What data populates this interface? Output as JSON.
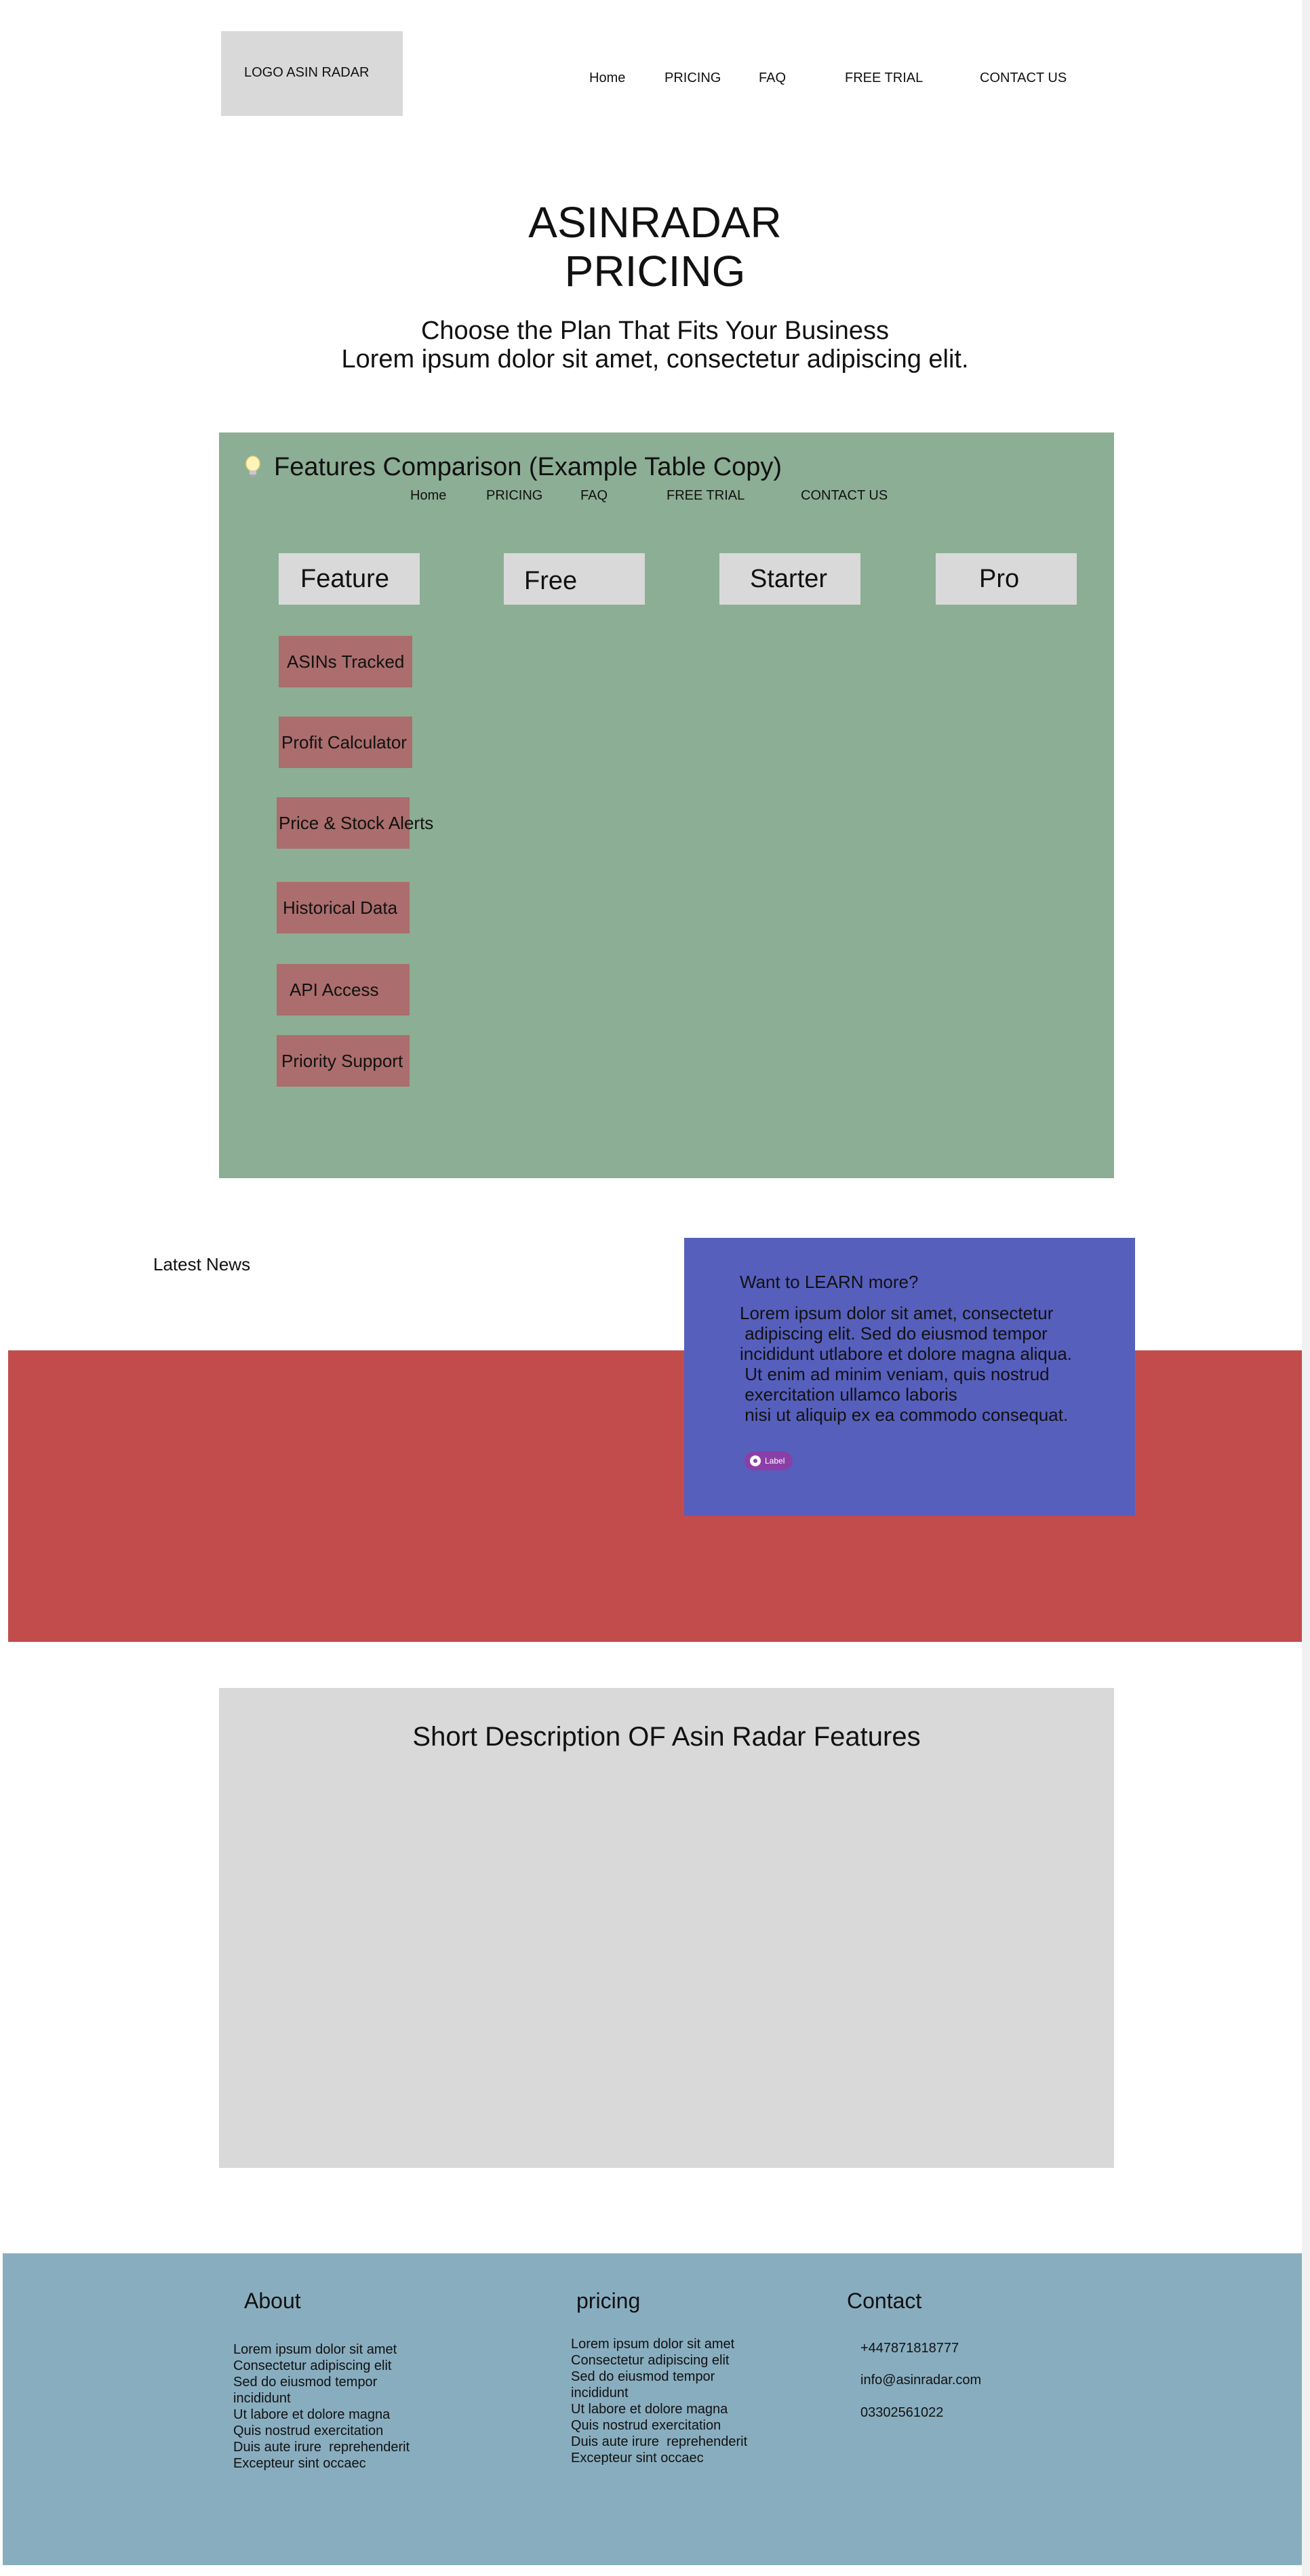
{
  "header": {
    "logo": "LOGO ASIN RADAR",
    "nav": [
      "Home",
      "PRICING",
      "FAQ",
      "FREE TRIAL",
      "CONTACT US"
    ]
  },
  "hero": {
    "title_line1": "ASINRADAR",
    "title_line2": "PRICING",
    "subtitle_line1": "Choose the Plan That Fits Your Business",
    "subtitle_line2": "Lorem ipsum dolor sit amet, consectetur adipiscing elit."
  },
  "comparison": {
    "title": "Features Comparison (Example Table Copy)",
    "nav": [
      "Home",
      "PRICING",
      "FAQ",
      "FREE TRIAL",
      "CONTACT US"
    ],
    "columns": [
      "Feature",
      "Free",
      "Starter",
      "Pro"
    ],
    "features": [
      "ASINs Tracked",
      "Profit Calculator",
      "Price & Stock Alerts",
      "Historical Data",
      "API Access",
      "Priority Support"
    ]
  },
  "news": {
    "label": "Latest News"
  },
  "learn": {
    "title": "Want to LEARN more?",
    "body": "Lorem ipsum dolor sit amet, consectetur\n adipiscing elit. Sed do eiusmod tempor\nincididunt utlabore et dolore magna aliqua.\n Ut enim ad minim veniam, quis nostrud\n exercitation ullamco laboris\n nisi ut aliquip ex ea commodo consequat.",
    "button_label": "Label"
  },
  "description": {
    "title": "Short  Description OF Asin Radar Features"
  },
  "footer": {
    "about_heading": "About",
    "about_text": "Lorem ipsum dolor sit amet\nConsectetur adipiscing elit\nSed do eiusmod tempor\nincididunt\nUt labore et dolore magna\nQuis nostrud exercitation\nDuis aute irure  reprehenderit\nExcepteur sint occaec",
    "pricing_heading": "pricing",
    "pricing_text": "Lorem ipsum dolor sit amet\nConsectetur adipiscing elit\nSed do eiusmod tempor\nincididunt\nUt labore et dolore magna\nQuis nostrud exercitation\nDuis aute irure  reprehenderit\nExcepteur sint occaec",
    "contact_heading": "Contact",
    "phone": "+447871818777",
    "email": "info@asinradar.com",
    "phone2": "03302561022"
  },
  "colors": {
    "panel": "#8cae94",
    "feature_cell": "#ab6d6d",
    "red_band": "#c24c4c",
    "learn_box": "#575fbd",
    "footer": "#88adbf",
    "placeholder_gray": "#d9d9d9"
  }
}
